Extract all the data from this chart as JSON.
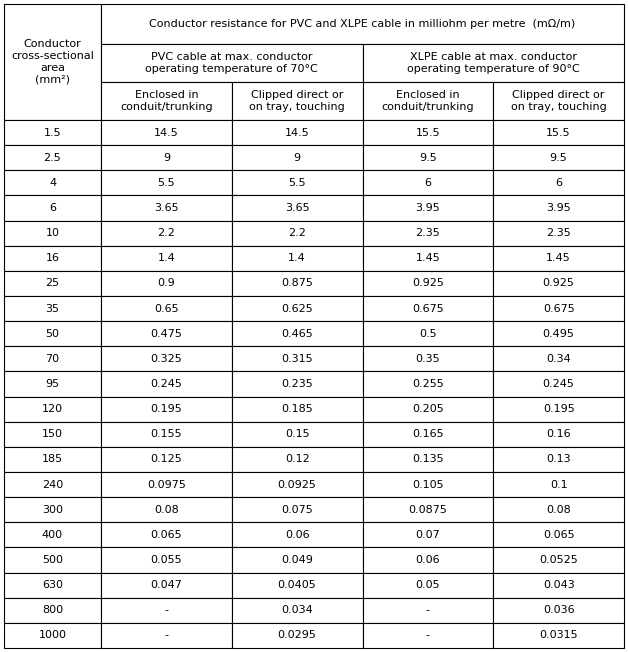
{
  "col0_header": "Conductor\ncross-sectional\narea\n(mm²)",
  "main_header": "Conductor resistance for PVC and XLPE cable in milliohm per metre  (mΩ/m)",
  "pvc_header": "PVC cable at max. conductor\noperating temperature of 70°C",
  "xlpe_header": "XLPE cable at max. conductor\noperating temperature of 90°C",
  "sub_headers": [
    "Enclosed in\nconduit/trunking",
    "Clipped direct or\non tray, touching",
    "Enclosed in\nconduit/trunking",
    "Clipped direct or\non tray, touching"
  ],
  "rows": [
    [
      "1.5",
      "14.5",
      "14.5",
      "15.5",
      "15.5"
    ],
    [
      "2.5",
      "9",
      "9",
      "9.5",
      "9.5"
    ],
    [
      "4",
      "5.5",
      "5.5",
      "6",
      "6"
    ],
    [
      "6",
      "3.65",
      "3.65",
      "3.95",
      "3.95"
    ],
    [
      "10",
      "2.2",
      "2.2",
      "2.35",
      "2.35"
    ],
    [
      "16",
      "1.4",
      "1.4",
      "1.45",
      "1.45"
    ],
    [
      "25",
      "0.9",
      "0.875",
      "0.925",
      "0.925"
    ],
    [
      "35",
      "0.65",
      "0.625",
      "0.675",
      "0.675"
    ],
    [
      "50",
      "0.475",
      "0.465",
      "0.5",
      "0.495"
    ],
    [
      "70",
      "0.325",
      "0.315",
      "0.35",
      "0.34"
    ],
    [
      "95",
      "0.245",
      "0.235",
      "0.255",
      "0.245"
    ],
    [
      "120",
      "0.195",
      "0.185",
      "0.205",
      "0.195"
    ],
    [
      "150",
      "0.155",
      "0.15",
      "0.165",
      "0.16"
    ],
    [
      "185",
      "0.125",
      "0.12",
      "0.135",
      "0.13"
    ],
    [
      "240",
      "0.0975",
      "0.0925",
      "0.105",
      "0.1"
    ],
    [
      "300",
      "0.08",
      "0.075",
      "0.0875",
      "0.08"
    ],
    [
      "400",
      "0.065",
      "0.06",
      "0.07",
      "0.065"
    ],
    [
      "500",
      "0.055",
      "0.049",
      "0.06",
      "0.0525"
    ],
    [
      "630",
      "0.047",
      "0.0405",
      "0.05",
      "0.043"
    ],
    [
      "800",
      "-",
      "0.034",
      "-",
      "0.036"
    ],
    [
      "1000",
      "-",
      "0.0295",
      "-",
      "0.0315"
    ]
  ],
  "bg_color": "#ffffff",
  "border_color": "#000000",
  "text_color": "#000000",
  "font_size": 8.0,
  "header_font_size": 8.0,
  "fig_width": 6.28,
  "fig_height": 6.52,
  "dpi": 100
}
